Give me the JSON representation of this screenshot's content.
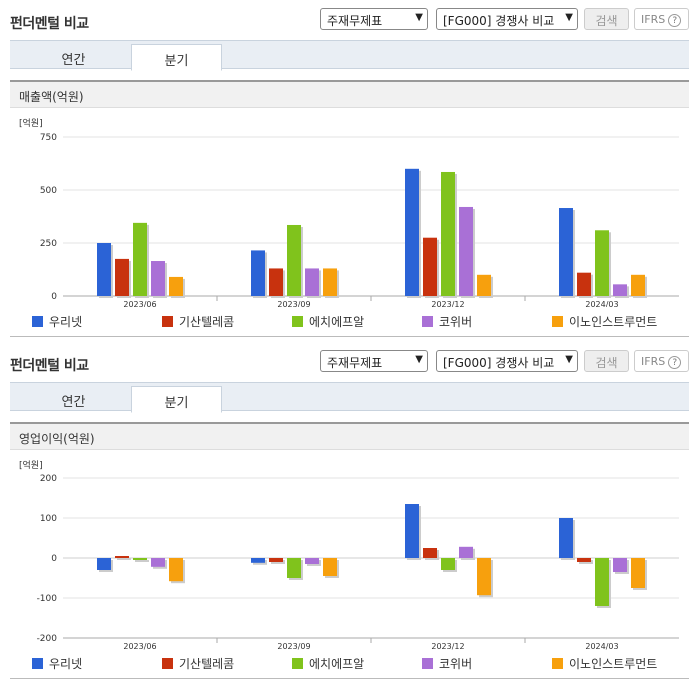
{
  "panels": [
    {
      "title": "펀더멘털 비교",
      "select_statement": "주재무제표",
      "select_compare": "[FG000] 경쟁사 비교",
      "search_label": "검색",
      "ifrs_label": "IFRS",
      "ifrs_help": "?",
      "tabs": [
        {
          "label": "연간"
        },
        {
          "label": "분기"
        }
      ],
      "active_tab": 1,
      "section_title": "매출액(억원)"
    },
    {
      "title": "펀더멘털 비교",
      "select_statement": "주재무제표",
      "select_compare": "[FG000] 경쟁사 비교",
      "search_label": "검색",
      "ifrs_label": "IFRS",
      "ifrs_help": "?",
      "tabs": [
        {
          "label": "연간"
        },
        {
          "label": "분기"
        }
      ],
      "active_tab": 1,
      "section_title": "영업이익(억원)"
    }
  ],
  "colors": {
    "series": [
      "#2b63d6",
      "#c8320e",
      "#80c31c",
      "#a970d6",
      "#f7a00d"
    ],
    "grid": "#e3e3e3",
    "axis": "#aaaaaa"
  },
  "chart_data": [
    {
      "type": "bar",
      "unit_label": "[억원]",
      "categories": [
        "2023/06",
        "2023/09",
        "2023/12",
        "2024/03"
      ],
      "ylim": [
        0,
        750
      ],
      "yticks": [
        0,
        250,
        500,
        750
      ],
      "grid": true,
      "legend_position": "bottom",
      "series": [
        {
          "name": "우리넷",
          "values": [
            250,
            215,
            600,
            415
          ]
        },
        {
          "name": "기산텔레콤",
          "values": [
            175,
            130,
            275,
            110
          ]
        },
        {
          "name": "에치에프알",
          "values": [
            345,
            335,
            585,
            310
          ]
        },
        {
          "name": "코위버",
          "values": [
            165,
            130,
            420,
            55
          ]
        },
        {
          "name": "이노인스트루먼트",
          "values": [
            90,
            130,
            100,
            100
          ]
        }
      ]
    },
    {
      "type": "bar",
      "unit_label": "[억원]",
      "categories": [
        "2023/06",
        "2023/09",
        "2023/12",
        "2024/03"
      ],
      "ylim": [
        -200,
        200
      ],
      "yticks": [
        -200,
        -100,
        0,
        100,
        200
      ],
      "grid": true,
      "legend_position": "bottom",
      "series": [
        {
          "name": "우리넷",
          "values": [
            -30,
            -12,
            135,
            100
          ]
        },
        {
          "name": "기산텔레콤",
          "values": [
            5,
            -10,
            25,
            -10
          ]
        },
        {
          "name": "에치에프알",
          "values": [
            -5,
            -50,
            -30,
            -120
          ]
        },
        {
          "name": "코위버",
          "values": [
            -22,
            -15,
            28,
            -35
          ]
        },
        {
          "name": "이노인스트루먼트",
          "values": [
            -58,
            -45,
            -93,
            -75
          ]
        }
      ]
    }
  ]
}
